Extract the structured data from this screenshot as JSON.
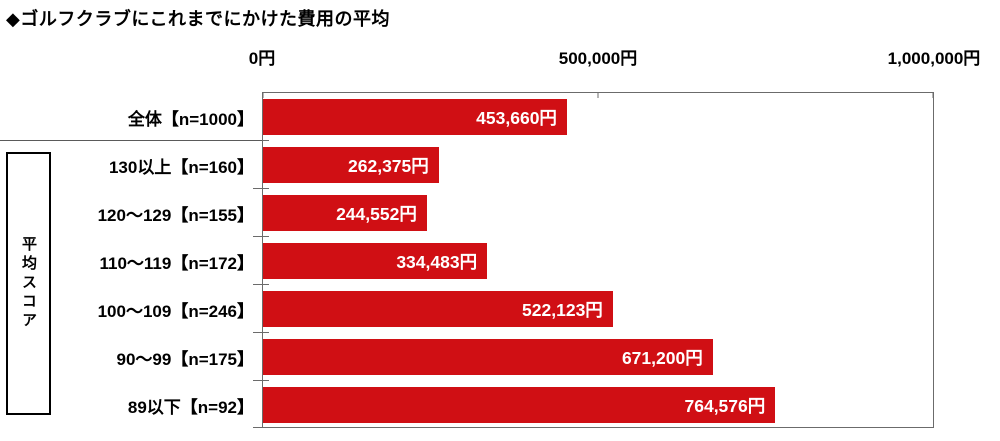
{
  "title": "◆ゴルフクラブにこれまでにかけた費用の平均",
  "group_box_label": "平均スコア",
  "colors": {
    "bar": "#d00f14",
    "bar_value_text": "#ffffff",
    "axis_line": "#6b6b6b",
    "group_box_border": "#000000",
    "background": "#ffffff"
  },
  "chart_data": {
    "type": "bar",
    "orientation": "horizontal",
    "title": "◆ゴルフクラブにこれまでにかけた費用の平均",
    "xlabel": "",
    "ylabel": "平均スコア",
    "xlim": [
      0,
      1000000
    ],
    "grid": false,
    "legend": "none",
    "x_tick_values": [
      0,
      500000,
      1000000
    ],
    "x_tick_labels": [
      "0円",
      "500,000円",
      "1,000,000円"
    ],
    "categories": [
      "全体【n=1000】",
      "130以上【n=160】",
      "120〜129【n=155】",
      "110〜119【n=172】",
      "100〜109【n=246】",
      "90〜99【n=175】",
      "89以下【n=92】"
    ],
    "values": [
      453660,
      262375,
      244552,
      334483,
      522123,
      671200,
      764576
    ],
    "value_labels": [
      "453,660円",
      "262,375円",
      "244,552円",
      "334,483円",
      "522,123円",
      "671,200円",
      "764,576円"
    ],
    "notes": "first row 全体 is separated from the 平均スコア group rows by a horizontal rule"
  }
}
